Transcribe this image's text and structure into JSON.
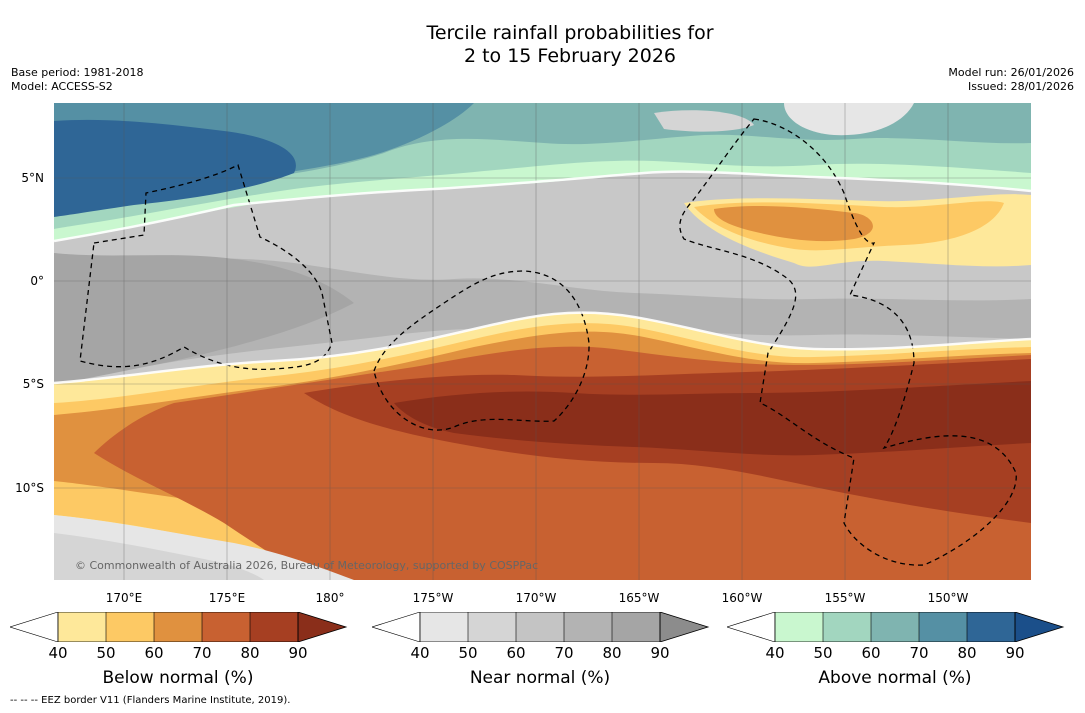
{
  "title": {
    "line1": "Tercile rainfall probabilities for",
    "line2": "2 to 15 February 2026"
  },
  "meta": {
    "base_period": "Base period: 1981-2018",
    "model": "Model: ACCESS-S2",
    "model_run": "Model run: 26/01/2026",
    "issued": "Issued: 28/01/2026"
  },
  "latitude_labels": [
    "5°N",
    "0°",
    "5°S",
    "10°S"
  ],
  "longitude_labels": [
    "170°E",
    "175°E",
    "180°",
    "175°W",
    "170°W",
    "165°W",
    "160°W",
    "155°W",
    "150°W"
  ],
  "copyright": "© Commonwealth of Australia 2026, Bureau of Meteorology, supported by COSPPac",
  "colorbars": [
    {
      "label": "Below normal (%)",
      "ticks": [
        "40",
        "50",
        "60",
        "70",
        "80",
        "90"
      ],
      "colors": [
        "#ffffff",
        "#fee89a",
        "#fdc964",
        "#e0913f",
        "#c86131",
        "#a63f22",
        "#8a2e1a"
      ]
    },
    {
      "label": "Near normal (%)",
      "ticks": [
        "40",
        "50",
        "60",
        "70",
        "80",
        "90"
      ],
      "colors": [
        "#ffffff",
        "#e6e6e6",
        "#d5d5d5",
        "#c4c4c4",
        "#b3b3b3",
        "#a5a5a5",
        "#8c8c8c"
      ]
    },
    {
      "label": "Above normal (%)",
      "ticks": [
        "40",
        "50",
        "60",
        "70",
        "80",
        "90"
      ],
      "colors": [
        "#ffffff",
        "#c9f7cf",
        "#a2d6bf",
        "#7fb4b0",
        "#5590a4",
        "#2f6696",
        "#1b4f8a"
      ]
    }
  ],
  "footer": "-- -- -- EEZ border V11 (Flanders Marine Institute, 2019)."
}
